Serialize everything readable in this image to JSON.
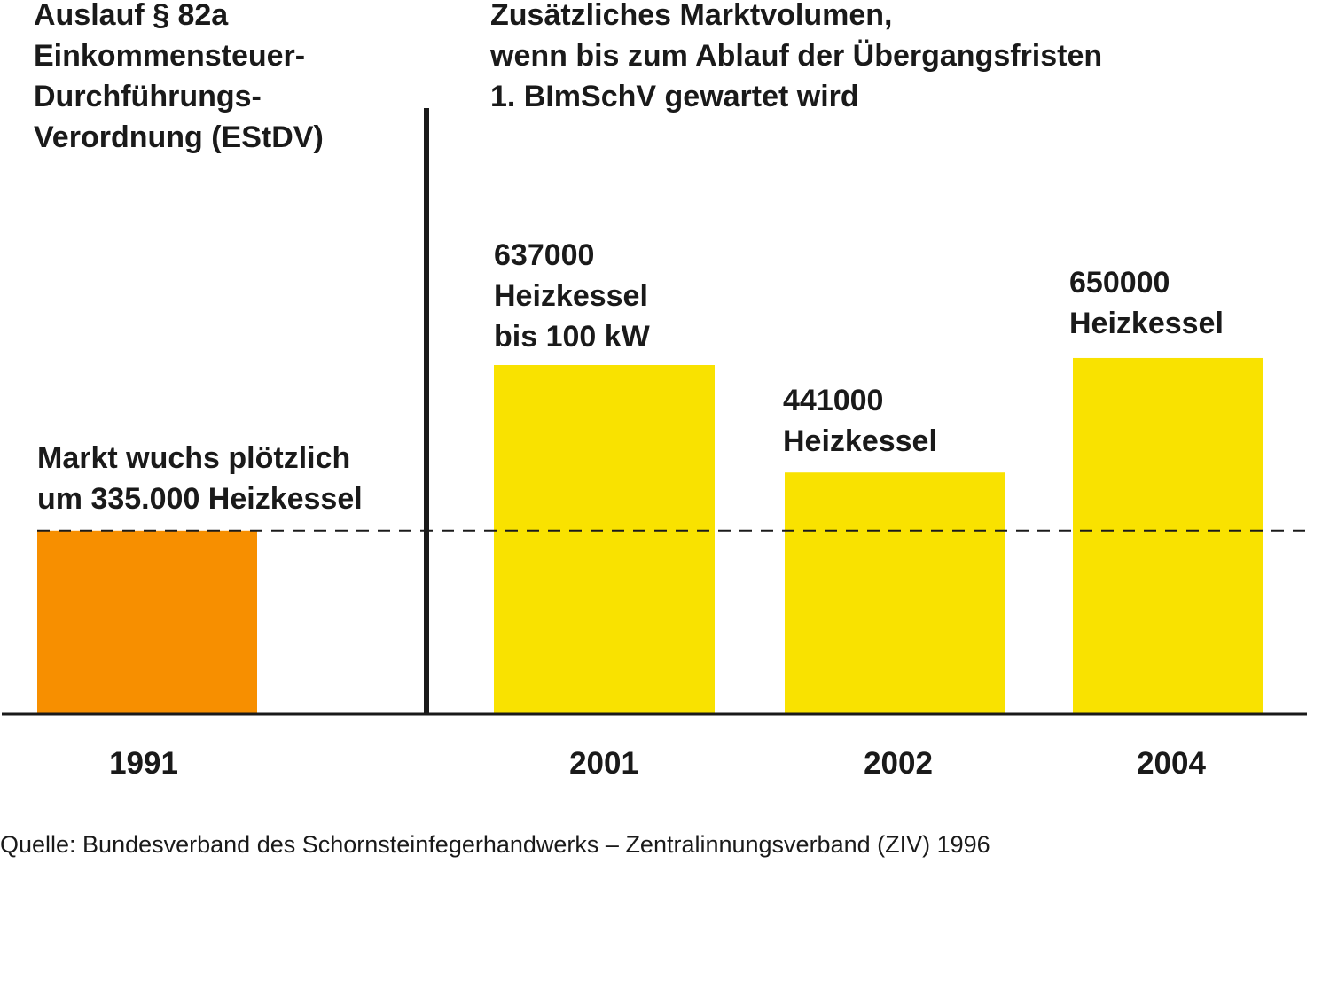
{
  "chart_data": {
    "type": "bar",
    "categories": [
      "1991",
      "2001",
      "2002",
      "2004"
    ],
    "values": [
      335000,
      637000,
      441000,
      650000
    ],
    "colors": [
      "#f78f00",
      "#f9e200",
      "#f9e200",
      "#f9e200"
    ],
    "reference_line": 335000,
    "ylim": [
      0,
      700000
    ],
    "grid": false,
    "left_heading": [
      "Auslauf § 82a",
      "Einkommensteuer-",
      "Durchführungs-",
      "Verordnung (EStDV)"
    ],
    "right_heading": [
      "Zusätzliches Marktvolumen,",
      "wenn bis zum Ablauf der Übergangsfristen",
      "1. BImSchV gewartet wird"
    ],
    "bar_labels": [
      [
        "Markt wuchs plötzlich",
        "um 335.000 Heizkessel"
      ],
      [
        "637000",
        "Heizkessel",
        "bis 100 kW"
      ],
      [
        "441000",
        "Heizkessel"
      ],
      [
        "650000",
        "Heizkessel"
      ]
    ],
    "source": "Quelle: Bundesverband des Schornsteinfegerhandwerks – Zentralinnungsverband (ZIV) 1996"
  }
}
